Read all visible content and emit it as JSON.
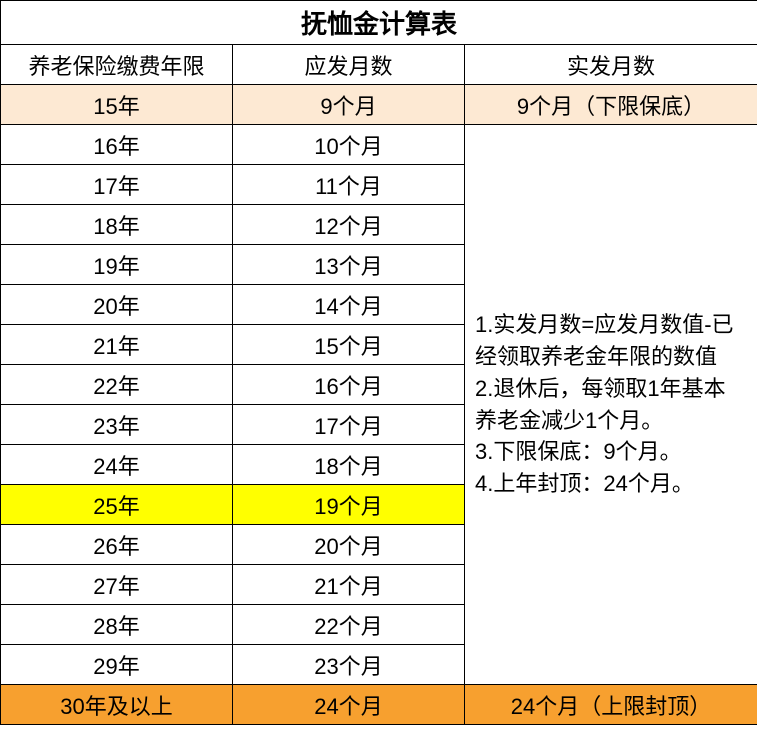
{
  "table": {
    "title": "抚恤金计算表",
    "title_fontsize": 26,
    "headers": {
      "years": "养老保险缴费年限",
      "due_months": "应发月数",
      "actual_months": "实发月数"
    },
    "header_fontsize": 22,
    "body_fontsize": 22,
    "border_color": "#000000",
    "background_color": "#ffffff",
    "highlight_colors": {
      "peach": "#fde9d3",
      "yellow": "#ffff00",
      "orange": "#f7a02f"
    },
    "column_widths": {
      "years": 232,
      "due_months": 232,
      "actual_months": 293
    },
    "rows": [
      {
        "years": "15年",
        "due": "9个月",
        "actual": "9个月（下限保底）",
        "highlight": "peach"
      },
      {
        "years": "16年",
        "due": "10个月",
        "highlight": null
      },
      {
        "years": "17年",
        "due": "11个月",
        "highlight": null
      },
      {
        "years": "18年",
        "due": "12个月",
        "highlight": null
      },
      {
        "years": "19年",
        "due": "13个月",
        "highlight": null
      },
      {
        "years": "20年",
        "due": "14个月",
        "highlight": null
      },
      {
        "years": "21年",
        "due": "15个月",
        "highlight": null
      },
      {
        "years": "22年",
        "due": "16个月",
        "highlight": null
      },
      {
        "years": "23年",
        "due": "17个月",
        "highlight": null
      },
      {
        "years": "24年",
        "due": "18个月",
        "highlight": null
      },
      {
        "years": "25年",
        "due": "19个月",
        "highlight": "yellow"
      },
      {
        "years": "26年",
        "due": "20个月",
        "highlight": null
      },
      {
        "years": "27年",
        "due": "21个月",
        "highlight": null
      },
      {
        "years": "28年",
        "due": "22个月",
        "highlight": null
      },
      {
        "years": "29年",
        "due": "23个月",
        "highlight": null
      },
      {
        "years": "30年及以上",
        "due": "24个月",
        "actual": "24个月（上限封顶）",
        "highlight": "orange"
      }
    ],
    "notes": {
      "line1": "1.实发月数=应发月数值-已经领取养老金年限的数值",
      "line2": "2.退休后，每领取1年基本养老金减少1个月。",
      "line3": "3.下限保底：9个月。",
      "line4": "4.上年封顶：24个月。"
    }
  }
}
